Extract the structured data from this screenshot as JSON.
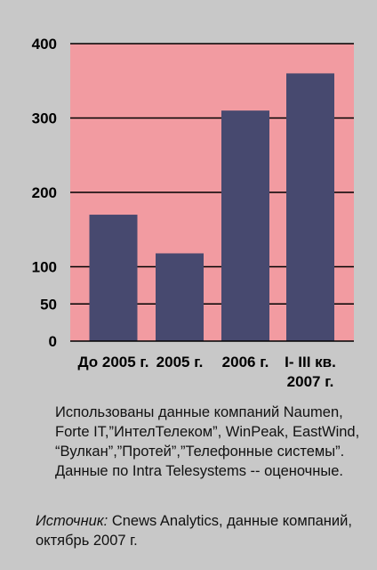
{
  "chart_data": {
    "type": "bar",
    "categories": [
      "До 2005 г.",
      "2005 г.",
      "2006 г.",
      "I- III кв. 2007 г."
    ],
    "category_lines": [
      [
        "До 2005 г."
      ],
      [
        "2005 г."
      ],
      [
        "2006 г."
      ],
      [
        "I- III кв.",
        "2007 г."
      ]
    ],
    "values": [
      170,
      118,
      310,
      360
    ],
    "y_ticks": [
      0,
      50,
      100,
      200,
      300,
      400
    ],
    "tick_labels": [
      "0",
      "50",
      "100",
      "200",
      "300",
      "400"
    ],
    "ylim": [
      0,
      400
    ],
    "grid": true,
    "colors": {
      "plot_bg": "#f29ba1",
      "bar": "#47496f",
      "page_bg": "#c8c8c8",
      "grid": "#000000"
    }
  },
  "note": "Использованы данные компаний Naumen, Forte IT,”ИнтелТелеком”, WinPeak, EastWind, “Вулкан”,”Протей”,”Телефонные системы”. Данные по Intra Telesystems -- оценочные.",
  "source": {
    "label": "Источник:",
    "text": " Cnews Analytics, данные компаний, октябрь 2007 г."
  }
}
